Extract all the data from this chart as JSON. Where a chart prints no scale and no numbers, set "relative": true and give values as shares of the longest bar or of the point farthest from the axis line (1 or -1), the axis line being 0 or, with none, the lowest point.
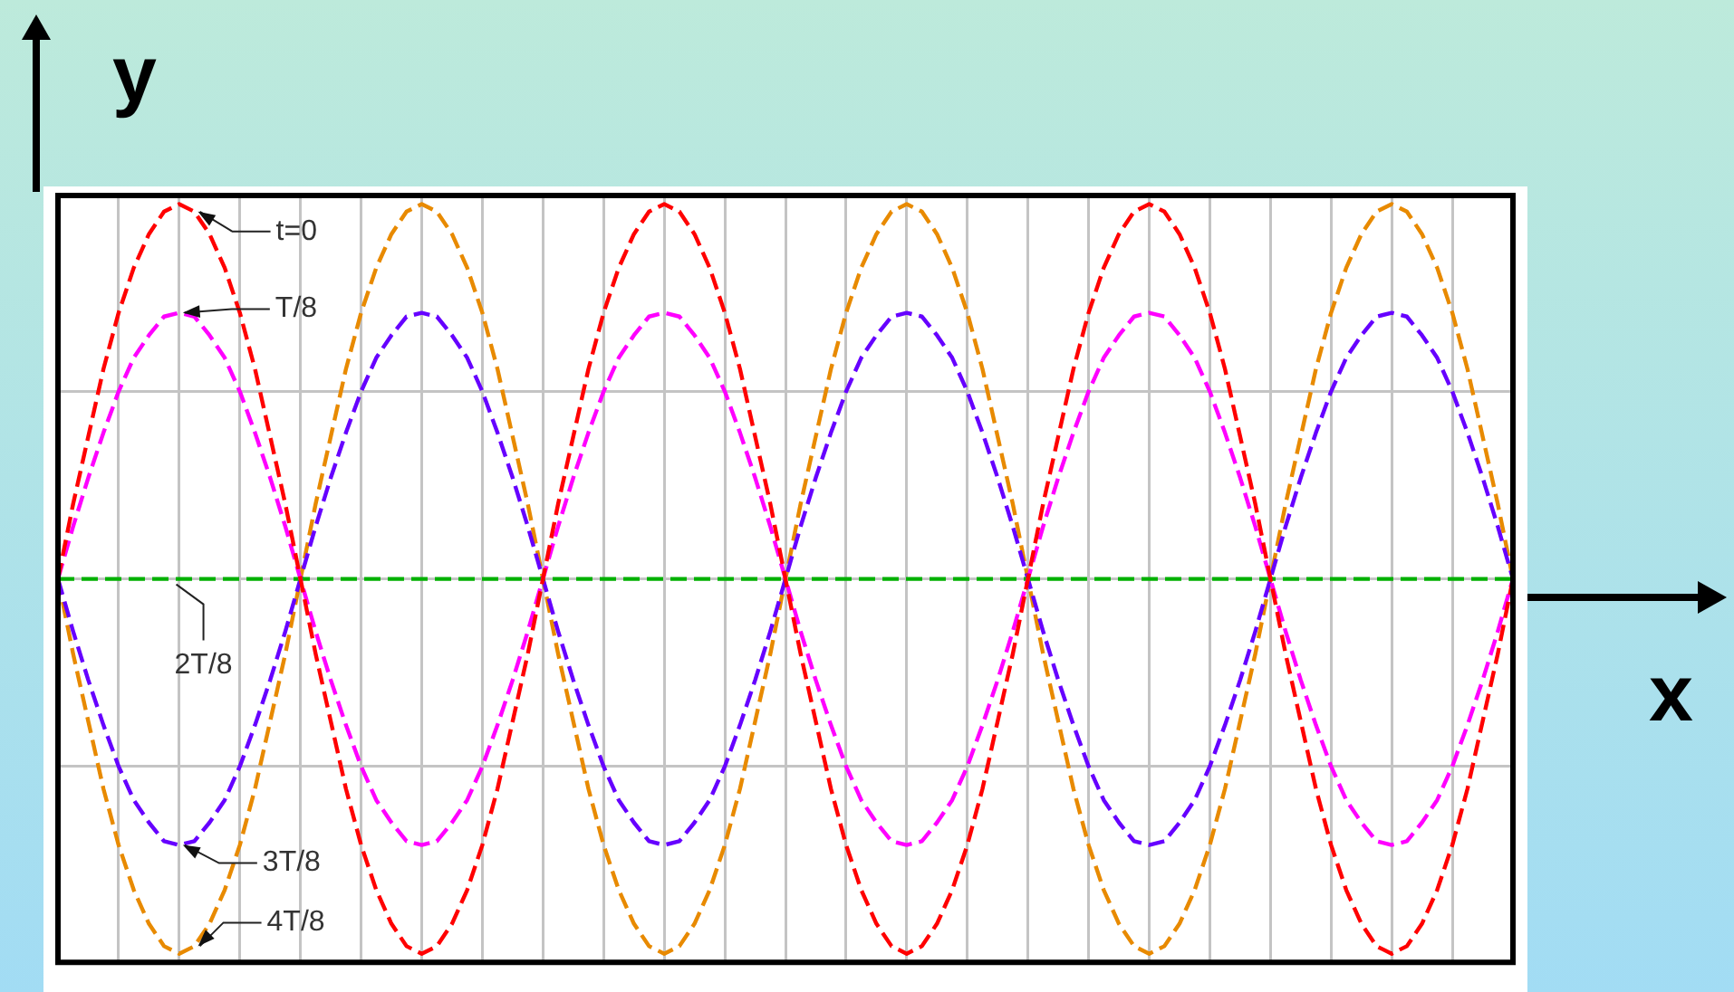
{
  "chart_data": {
    "type": "line",
    "relative": true,
    "xlabel": "x",
    "ylabel": "y",
    "grid": true,
    "legend": false,
    "marker": "none",
    "line_style": "dashed",
    "categories": [
      null,
      null,
      null,
      null,
      null,
      null,
      null,
      null,
      null,
      null,
      null,
      null,
      null,
      null,
      null,
      null,
      null,
      null,
      null,
      null,
      null,
      null,
      null,
      null,
      null,
      null,
      null,
      null,
      null,
      null,
      null,
      null,
      null,
      null,
      null,
      null,
      null,
      null,
      null,
      null,
      null,
      null,
      null,
      null,
      null,
      null,
      null,
      null,
      null,
      null,
      null,
      null,
      null,
      null,
      null,
      null,
      null,
      null,
      null,
      null,
      null,
      null,
      null,
      null,
      null,
      null,
      null,
      null,
      null,
      null,
      null,
      null,
      null,
      null,
      null,
      null,
      null,
      null,
      null,
      null,
      null,
      null,
      null,
      null,
      null,
      null,
      null,
      null,
      null,
      null,
      null,
      null,
      null,
      null,
      null,
      null,
      null
    ],
    "series": [
      {
        "name": "t=0",
        "color": "#ff0000",
        "values": [
          0,
          0.2,
          0.38,
          0.56,
          0.71,
          0.83,
          0.92,
          0.98,
          1,
          0.98,
          0.92,
          0.83,
          0.71,
          0.56,
          0.38,
          0.2,
          0,
          -0.2,
          -0.38,
          -0.56,
          -0.71,
          -0.83,
          -0.92,
          -0.98,
          -1,
          -0.98,
          -0.92,
          -0.83,
          -0.71,
          -0.56,
          -0.38,
          -0.2,
          0,
          0.2,
          0.38,
          0.56,
          0.71,
          0.83,
          0.92,
          0.98,
          1,
          0.98,
          0.92,
          0.83,
          0.71,
          0.56,
          0.38,
          0.2,
          0,
          -0.2,
          -0.38,
          -0.56,
          -0.71,
          -0.83,
          -0.92,
          -0.98,
          -1,
          -0.98,
          -0.92,
          -0.83,
          -0.71,
          -0.56,
          -0.38,
          -0.2,
          0,
          0.2,
          0.38,
          0.56,
          0.71,
          0.83,
          0.92,
          0.98,
          1,
          0.98,
          0.92,
          0.83,
          0.71,
          0.56,
          0.38,
          0.2,
          0,
          -0.2,
          -0.38,
          -0.56,
          -0.71,
          -0.83,
          -0.92,
          -0.98,
          -1,
          -0.98,
          -0.92,
          -0.83,
          -0.71,
          -0.56,
          -0.38,
          -0.2,
          0
        ]
      },
      {
        "name": "T/8",
        "color": "#ff00ff",
        "values": [
          0,
          0.14,
          0.27,
          0.39,
          0.5,
          0.59,
          0.65,
          0.7,
          0.71,
          0.7,
          0.65,
          0.59,
          0.5,
          0.39,
          0.27,
          0.14,
          0,
          -0.14,
          -0.27,
          -0.39,
          -0.5,
          -0.59,
          -0.65,
          -0.7,
          -0.71,
          -0.7,
          -0.65,
          -0.59,
          -0.5,
          -0.39,
          -0.27,
          -0.14,
          0,
          0.14,
          0.27,
          0.39,
          0.5,
          0.59,
          0.65,
          0.7,
          0.71,
          0.7,
          0.65,
          0.59,
          0.5,
          0.39,
          0.27,
          0.14,
          0,
          -0.14,
          -0.27,
          -0.39,
          -0.5,
          -0.59,
          -0.65,
          -0.7,
          -0.71,
          -0.7,
          -0.65,
          -0.59,
          -0.5,
          -0.39,
          -0.27,
          -0.14,
          0,
          0.14,
          0.27,
          0.39,
          0.5,
          0.59,
          0.65,
          0.7,
          0.71,
          0.7,
          0.65,
          0.59,
          0.5,
          0.39,
          0.27,
          0.14,
          0,
          -0.14,
          -0.27,
          -0.39,
          -0.5,
          -0.59,
          -0.65,
          -0.7,
          -0.71,
          -0.7,
          -0.65,
          -0.59,
          -0.5,
          -0.39,
          -0.27,
          -0.14,
          0
        ]
      },
      {
        "name": "2T/8",
        "color": "#00b000",
        "values": [
          0,
          0,
          0,
          0,
          0,
          0,
          0,
          0,
          0,
          0,
          0,
          0,
          0,
          0,
          0,
          0,
          0,
          0,
          0,
          0,
          0,
          0,
          0,
          0,
          0,
          0,
          0,
          0,
          0,
          0,
          0,
          0,
          0,
          0,
          0,
          0,
          0,
          0,
          0,
          0,
          0,
          0,
          0,
          0,
          0,
          0,
          0,
          0,
          0,
          0,
          0,
          0,
          0,
          0,
          0,
          0,
          0,
          0,
          0,
          0,
          0,
          0,
          0,
          0,
          0,
          0,
          0,
          0,
          0,
          0,
          0,
          0,
          0,
          0,
          0,
          0,
          0,
          0,
          0,
          0,
          0,
          0,
          0,
          0,
          0,
          0,
          0,
          0,
          0,
          0,
          0,
          0,
          0,
          0,
          0,
          0,
          0
        ]
      },
      {
        "name": "3T/8",
        "color": "#6600ff",
        "values": [
          0,
          -0.14,
          -0.27,
          -0.39,
          -0.5,
          -0.59,
          -0.65,
          -0.7,
          -0.71,
          -0.7,
          -0.65,
          -0.59,
          -0.5,
          -0.39,
          -0.27,
          -0.14,
          0,
          0.14,
          0.27,
          0.39,
          0.5,
          0.59,
          0.65,
          0.7,
          0.71,
          0.7,
          0.65,
          0.59,
          0.5,
          0.39,
          0.27,
          0.14,
          0,
          -0.14,
          -0.27,
          -0.39,
          -0.5,
          -0.59,
          -0.65,
          -0.7,
          -0.71,
          -0.7,
          -0.65,
          -0.59,
          -0.5,
          -0.39,
          -0.27,
          -0.14,
          0,
          0.14,
          0.27,
          0.39,
          0.5,
          0.59,
          0.65,
          0.7,
          0.71,
          0.7,
          0.65,
          0.59,
          0.5,
          0.39,
          0.27,
          0.14,
          0,
          -0.14,
          -0.27,
          -0.39,
          -0.5,
          -0.59,
          -0.65,
          -0.7,
          -0.71,
          -0.7,
          -0.65,
          -0.59,
          -0.5,
          -0.39,
          -0.27,
          -0.14,
          0,
          0.14,
          0.27,
          0.39,
          0.5,
          0.59,
          0.65,
          0.7,
          0.71,
          0.7,
          0.65,
          0.59,
          0.5,
          0.39,
          0.27,
          0.14,
          0
        ]
      },
      {
        "name": "4T/8",
        "color": "#e88a00",
        "values": [
          0,
          -0.2,
          -0.38,
          -0.56,
          -0.71,
          -0.83,
          -0.92,
          -0.98,
          -1,
          -0.98,
          -0.92,
          -0.83,
          -0.71,
          -0.56,
          -0.38,
          -0.2,
          0,
          0.2,
          0.38,
          0.56,
          0.71,
          0.83,
          0.92,
          0.98,
          1,
          0.98,
          0.92,
          0.83,
          0.71,
          0.56,
          0.38,
          0.2,
          0,
          -0.2,
          -0.38,
          -0.56,
          -0.71,
          -0.83,
          -0.92,
          -0.98,
          -1,
          -0.98,
          -0.92,
          -0.83,
          -0.71,
          -0.56,
          -0.38,
          -0.2,
          0,
          0.2,
          0.38,
          0.56,
          0.71,
          0.83,
          0.92,
          0.98,
          1,
          0.98,
          0.92,
          0.83,
          0.71,
          0.56,
          0.38,
          0.2,
          0,
          -0.2,
          -0.38,
          -0.56,
          -0.71,
          -0.83,
          -0.92,
          -0.98,
          -1,
          -0.98,
          -0.92,
          -0.83,
          -0.71,
          -0.56,
          -0.38,
          -0.2,
          0,
          0.2,
          0.38,
          0.56,
          0.71,
          0.83,
          0.92,
          0.98,
          1,
          0.98,
          0.92,
          0.83,
          0.71,
          0.56,
          0.38,
          0.2,
          0
        ]
      }
    ]
  }
}
